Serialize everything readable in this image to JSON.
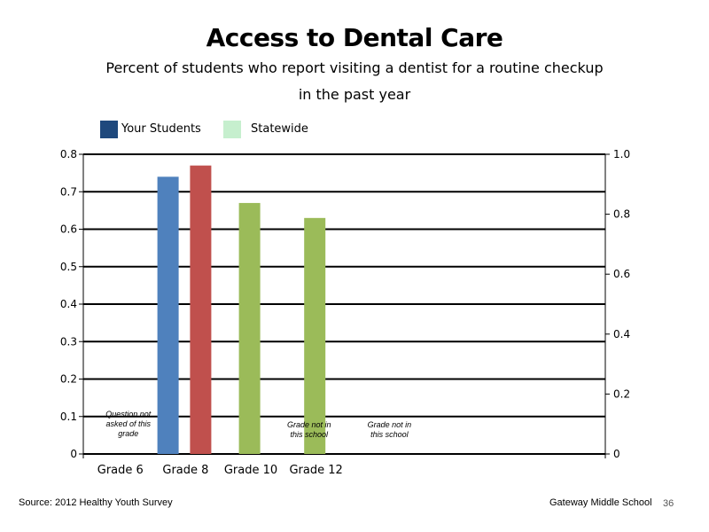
{
  "colors": {
    "your_students": "#1f497d",
    "statewide": "#c6efce",
    "bar_blue": "#4f81bd",
    "bar_red": "#c0504d",
    "bar_green": "#9bbb59"
  },
  "chart_data": {
    "type": "bar",
    "title": "Access to Dental Care",
    "subtitle_line1": "Percent of students who report visiting a dentist for a routine checkup",
    "subtitle_line2": "in the past year",
    "legend": [
      "Your Students",
      "Statewide"
    ],
    "legend_placement": "top-left",
    "categories": [
      "Grade 6",
      "Grade 8",
      "Grade 10",
      "Grade 12"
    ],
    "series": [
      {
        "name": "Your Students",
        "values": [
          null,
          0.74,
          null,
          null
        ]
      },
      {
        "name": "Statewide",
        "values": [
          null,
          0.77,
          0.67,
          0.63
        ]
      }
    ],
    "ylim": [
      0,
      0.8
    ],
    "y_ticks": [
      "0",
      "0.1",
      "0.2",
      "0.3",
      "0.4",
      "0.5",
      "0.6",
      "0.7",
      "0.8"
    ],
    "y2lim": [
      0,
      1.0
    ],
    "y2_ticks": [
      "0",
      "0.2",
      "0.4",
      "0.6",
      "0.8",
      "1.0"
    ],
    "grid": true,
    "annotations": [
      {
        "category": "Grade 6",
        "lines": [
          "Question not",
          "asked of this",
          "grade"
        ]
      },
      {
        "slot": 6,
        "lines": [
          "Grade not in",
          "this school"
        ]
      },
      {
        "slot": 8,
        "lines": [
          "Grade not in",
          "this school"
        ]
      }
    ]
  },
  "footer": {
    "source": "Source: 2012 Healthy Youth Survey",
    "school": "Gateway Middle  School",
    "page": "36"
  }
}
